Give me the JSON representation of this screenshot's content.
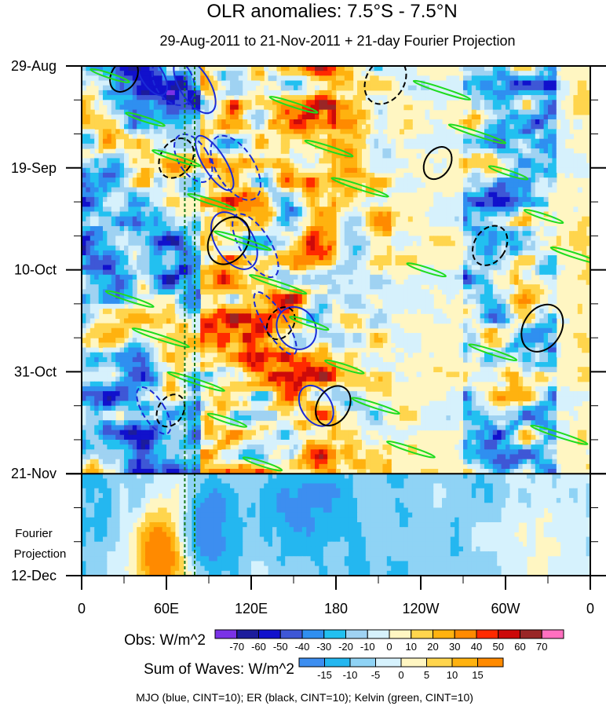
{
  "chart_data": {
    "type": "heatmap",
    "title": "OLR anomalies: 7.5°S - 7.5°N",
    "subtitle": "29-Aug-2011 to 21-Nov-2011 + 21-day Fourier Projection",
    "y_ticks": [
      "29-Aug",
      "19-Sep",
      "10-Oct",
      "31-Oct",
      "21-Nov",
      "12-Dec"
    ],
    "y_tick_values": [
      0,
      21,
      42,
      63,
      84,
      105
    ],
    "y_annotation": [
      "Fourier",
      "Projection"
    ],
    "x_ticks": [
      "0",
      "60E",
      "120E",
      "180",
      "120W",
      "60W",
      "0"
    ],
    "x_tick_values": [
      0,
      60,
      120,
      180,
      240,
      300,
      360
    ],
    "xlim": [
      0,
      360
    ],
    "ylim_days": [
      0,
      105
    ],
    "observed_end_day": 84,
    "reference_lines_lon": [
      73,
      80
    ],
    "obs_colorbar": {
      "label": "Obs: W/m^2",
      "levels": [
        "-70",
        "-60",
        "-50",
        "-40",
        "-30",
        "-20",
        "-10",
        "0",
        "10",
        "20",
        "30",
        "40",
        "50",
        "60",
        "70"
      ],
      "colors": [
        "#7a32e6",
        "#1c1c9c",
        "#1111cc",
        "#3e57d6",
        "#2f8ff0",
        "#22c0f0",
        "#9fd2f2",
        "#d6f1fc",
        "#fff6c2",
        "#ffd54d",
        "#ffb20f",
        "#ff8a00",
        "#ff2a00",
        "#cc0a0a",
        "#992626",
        "#ff6fbf"
      ]
    },
    "wave_colorbar": {
      "label": "Sum of Waves: W/m^2",
      "levels": [
        "-15",
        "-10",
        "-5",
        "0",
        "5",
        "10",
        "15"
      ],
      "colors": [
        "#3d8ef0",
        "#24b7f0",
        "#8fd3f5",
        "#d6f2fd",
        "#fff6c2",
        "#ffd54d",
        "#ffb20f",
        "#ff8a00"
      ]
    },
    "contour_legend": "MJO (blue, CINT=10); ER (black, CINT=10); Kelvin (green, CINT=10)",
    "series": [
      {
        "name": "MJO",
        "color": "#1a2ad6"
      },
      {
        "name": "ER",
        "color": "#000000"
      },
      {
        "name": "Kelvin",
        "color": "#1fdc1f"
      }
    ]
  }
}
